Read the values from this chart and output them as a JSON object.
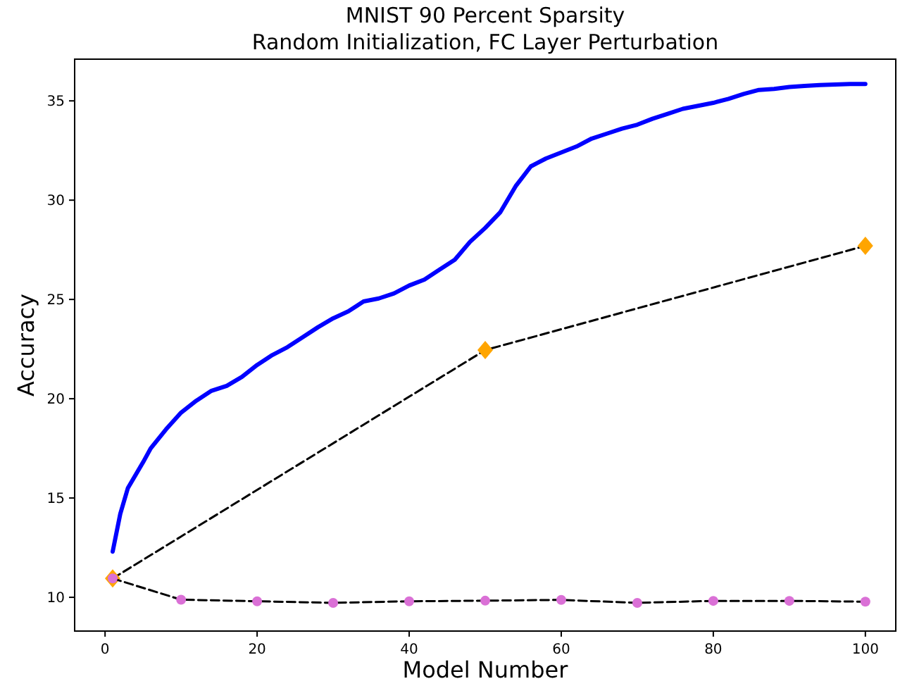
{
  "chart_data": {
    "type": "line",
    "title": "MNIST 90 Percent Sparsity\nRandom Initialization, FC Layer Perturbation",
    "xlabel": "Model Number",
    "ylabel": "Accuracy",
    "xlim": [
      -4,
      104
    ],
    "ylim": [
      8.3,
      37.1
    ],
    "xticks": [
      0,
      20,
      40,
      60,
      80,
      100
    ],
    "yticks": [
      10,
      15,
      20,
      25,
      30,
      35
    ],
    "grid": false,
    "series": [
      {
        "color": "#0000ff",
        "marker": "none",
        "line_style": "solid",
        "x": [
          1,
          2,
          3,
          5,
          6,
          8,
          10,
          12,
          14,
          16,
          18,
          20,
          22,
          24,
          26,
          28,
          30,
          32,
          34,
          36,
          38,
          40,
          42,
          44,
          46,
          48,
          50,
          52,
          54,
          56,
          58,
          60,
          62,
          64,
          66,
          68,
          70,
          72,
          74,
          76,
          78,
          80,
          82,
          84,
          86,
          88,
          90,
          92,
          94,
          96,
          98,
          100
        ],
        "values": [
          12.3,
          14.2,
          15.5,
          16.8,
          17.5,
          18.45,
          19.3,
          19.9,
          20.4,
          20.65,
          21.1,
          21.7,
          22.2,
          22.6,
          23.1,
          23.6,
          24.05,
          24.4,
          24.9,
          25.05,
          25.3,
          25.7,
          26.0,
          26.5,
          27.0,
          27.9,
          28.6,
          29.4,
          30.7,
          31.7,
          32.1,
          32.4,
          32.7,
          33.1,
          33.35,
          33.6,
          33.8,
          34.1,
          34.35,
          34.6,
          34.75,
          34.9,
          35.1,
          35.35,
          35.55,
          35.6,
          35.7,
          35.75,
          35.8,
          35.82,
          35.85,
          35.85
        ]
      },
      {
        "color": "#ffa500",
        "marker": "diamond",
        "line_style": "dashed",
        "x": [
          1,
          50,
          100
        ],
        "values": [
          10.95,
          22.45,
          27.7
        ]
      },
      {
        "color": "#da70d6",
        "marker": "circle",
        "line_style": "dashed",
        "x": [
          1,
          10,
          20,
          30,
          40,
          50,
          60,
          70,
          80,
          90,
          100
        ],
        "values": [
          10.95,
          9.88,
          9.8,
          9.72,
          9.8,
          9.83,
          9.87,
          9.72,
          9.82,
          9.82,
          9.78
        ]
      }
    ]
  }
}
